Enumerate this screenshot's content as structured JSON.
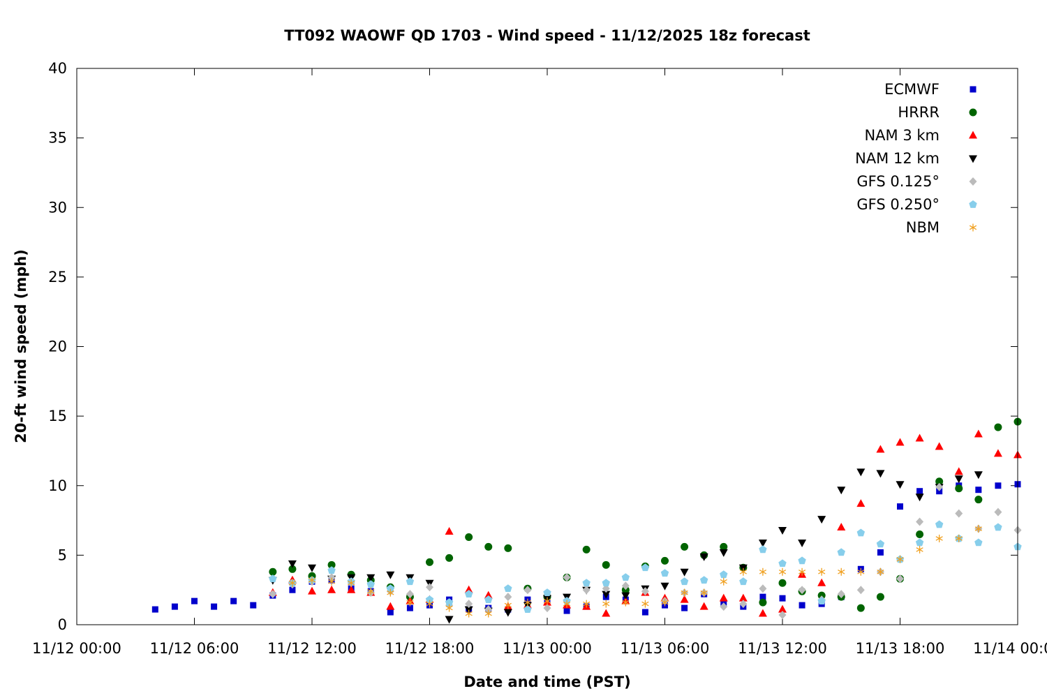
{
  "chart_data": {
    "type": "scatter",
    "title": "TT092 WAOWF QD 1703 - Wind speed - 11/12/2025 18z forecast",
    "xlabel": "Date and time (PST)",
    "ylabel": "20-ft wind speed (mph)",
    "xlim": [
      "11/12 00:00",
      "11/14 00:00"
    ],
    "ylim": [
      0,
      40
    ],
    "x_tick_labels": [
      "11/12 00:00",
      "11/12 06:00",
      "11/12 12:00",
      "11/12 18:00",
      "11/13 00:00",
      "11/13 06:00",
      "11/13 12:00",
      "11/13 18:00",
      "11/14 00:00"
    ],
    "y_tick_labels": [
      "0",
      "5",
      "10",
      "15",
      "20",
      "25",
      "30",
      "35",
      "40"
    ],
    "grid": false,
    "legend_position": "top-right",
    "series": [
      {
        "name": "ECMWF",
        "marker": "square",
        "color": "#0000cc",
        "x": [
          "11/12 04:00",
          "11/12 05:00",
          "11/12 06:00",
          "11/12 07:00",
          "11/12 08:00",
          "11/12 09:00",
          "11/12 10:00",
          "11/12 11:00",
          "11/12 12:00",
          "11/12 13:00",
          "11/12 14:00",
          "11/12 15:00",
          "11/12 16:00",
          "11/12 17:00",
          "11/12 18:00",
          "11/12 19:00",
          "11/12 20:00",
          "11/12 21:00",
          "11/12 22:00",
          "11/12 23:00",
          "11/13 00:00",
          "11/13 01:00",
          "11/13 02:00",
          "11/13 03:00",
          "11/13 04:00",
          "11/13 05:00",
          "11/13 06:00",
          "11/13 07:00",
          "11/13 08:00",
          "11/13 09:00",
          "11/13 10:00",
          "11/13 11:00",
          "11/13 12:00",
          "11/13 13:00",
          "11/13 14:00",
          "11/13 15:00",
          "11/13 16:00",
          "11/13 17:00",
          "11/13 18:00",
          "11/13 19:00",
          "11/13 20:00",
          "11/13 21:00",
          "11/13 22:00",
          "11/13 23:00",
          "11/14 00:00"
        ],
        "y": [
          1.1,
          1.3,
          1.7,
          1.3,
          1.7,
          1.4,
          2.1,
          2.5,
          3.1,
          3.2,
          2.6,
          2.4,
          0.9,
          1.2,
          1.4,
          1.8,
          1.1,
          1.2,
          1.1,
          1.8,
          1.7,
          1.0,
          1.3,
          2.0,
          1.8,
          0.9,
          1.4,
          1.2,
          2.2,
          1.6,
          1.3,
          2.0,
          1.9,
          1.4,
          1.5,
          2.0,
          4.0,
          5.2,
          8.5,
          9.6,
          9.6,
          10.0,
          9.7,
          10.0,
          10.1
        ]
      },
      {
        "name": "HRRR",
        "marker": "circle",
        "color": "#006400",
        "x": [
          "11/12 10:00",
          "11/12 11:00",
          "11/12 12:00",
          "11/12 13:00",
          "11/12 14:00",
          "11/12 15:00",
          "11/12 16:00",
          "11/12 17:00",
          "11/12 18:00",
          "11/12 19:00",
          "11/12 20:00",
          "11/12 21:00",
          "11/12 22:00",
          "11/12 23:00",
          "11/13 00:00",
          "11/13 01:00",
          "11/13 02:00",
          "11/13 03:00",
          "11/13 04:00",
          "11/13 05:00",
          "11/13 06:00",
          "11/13 07:00",
          "11/13 08:00",
          "11/13 09:00",
          "11/13 10:00",
          "11/13 11:00",
          "11/13 12:00",
          "11/13 13:00",
          "11/13 14:00",
          "11/13 15:00",
          "11/13 16:00",
          "11/13 17:00",
          "11/13 18:00",
          "11/13 19:00",
          "11/13 20:00",
          "11/13 21:00",
          "11/13 22:00",
          "11/13 23:00",
          "11/14 00:00"
        ],
        "y": [
          3.8,
          4.0,
          3.5,
          4.3,
          3.6,
          3.2,
          2.7,
          2.0,
          4.5,
          4.8,
          6.3,
          5.6,
          5.5,
          2.6,
          2.0,
          3.4,
          5.4,
          4.3,
          2.5,
          4.2,
          4.6,
          5.6,
          5.0,
          5.6,
          4.1,
          1.6,
          3.0,
          2.4,
          2.1,
          2.0,
          1.2,
          2.0,
          3.3,
          6.5,
          10.3,
          9.8,
          9.0,
          14.2,
          14.6
        ]
      },
      {
        "name": "NAM 3 km",
        "marker": "triangle-up",
        "color": "#ff0000",
        "x": [
          "11/12 10:00",
          "11/12 11:00",
          "11/12 12:00",
          "11/12 13:00",
          "11/12 14:00",
          "11/12 15:00",
          "11/12 16:00",
          "11/12 17:00",
          "11/12 18:00",
          "11/12 19:00",
          "11/12 20:00",
          "11/12 21:00",
          "11/12 22:00",
          "11/12 23:00",
          "11/13 00:00",
          "11/13 01:00",
          "11/13 02:00",
          "11/13 03:00",
          "11/13 04:00",
          "11/13 05:00",
          "11/13 06:00",
          "11/13 07:00",
          "11/13 08:00",
          "11/13 09:00",
          "11/13 10:00",
          "11/13 11:00",
          "11/13 12:00",
          "11/13 13:00",
          "11/13 14:00",
          "11/13 15:00",
          "11/13 16:00",
          "11/13 17:00",
          "11/13 18:00",
          "11/13 19:00",
          "11/13 20:00",
          "11/13 21:00",
          "11/13 22:00",
          "11/13 23:00",
          "11/14 00:00"
        ],
        "y": [
          2.3,
          3.2,
          2.4,
          2.5,
          2.5,
          2.3,
          1.3,
          1.7,
          1.8,
          6.7,
          2.5,
          2.1,
          1.3,
          1.4,
          1.6,
          1.4,
          1.3,
          0.8,
          1.7,
          2.3,
          1.9,
          1.8,
          1.3,
          1.9,
          1.9,
          0.8,
          1.1,
          3.6,
          3.0,
          7.0,
          8.7,
          12.6,
          13.1,
          13.4,
          12.8,
          11.0,
          13.7,
          12.3,
          12.2
        ]
      },
      {
        "name": "NAM 12 km",
        "marker": "triangle-down",
        "color": "#000000",
        "x": [
          "11/12 10:00",
          "11/12 11:00",
          "11/12 12:00",
          "11/12 13:00",
          "11/12 14:00",
          "11/12 15:00",
          "11/12 16:00",
          "11/12 17:00",
          "11/12 18:00",
          "11/12 19:00",
          "11/12 20:00",
          "11/12 21:00",
          "11/12 22:00",
          "11/12 23:00",
          "11/13 00:00",
          "11/13 01:00",
          "11/13 02:00",
          "11/13 03:00",
          "11/13 04:00",
          "11/13 05:00",
          "11/13 06:00",
          "11/13 07:00",
          "11/13 08:00",
          "11/13 09:00",
          "11/13 10:00",
          "11/13 11:00",
          "11/13 12:00",
          "11/13 13:00",
          "11/13 14:00",
          "11/13 15:00",
          "11/13 16:00",
          "11/13 17:00",
          "11/13 18:00",
          "11/13 19:00",
          "11/13 20:00",
          "11/13 21:00",
          "11/13 22:00",
          "11/13 23:00",
          "11/14 00:00"
        ],
        "y": [
          3.2,
          4.4,
          4.1,
          3.3,
          3.4,
          3.4,
          3.6,
          3.4,
          3.0,
          0.4,
          1.1,
          1.0,
          0.9,
          1.4,
          1.9,
          2.0,
          2.5,
          2.2,
          2.1,
          2.6,
          2.8,
          3.8,
          4.9,
          5.2,
          4.1,
          5.9,
          6.8,
          5.9,
          7.6,
          9.7,
          11.0,
          10.9,
          10.1,
          9.2,
          9.9,
          10.5,
          10.8,
          null,
          null
        ]
      },
      {
        "name": "GFS 0.125°",
        "marker": "diamond",
        "color": "#bbbbbb",
        "x": [
          "11/12 10:00",
          "11/12 11:00",
          "11/12 12:00",
          "11/12 13:00",
          "11/12 14:00",
          "11/12 15:00",
          "11/12 16:00",
          "11/12 17:00",
          "11/12 18:00",
          "11/12 19:00",
          "11/12 20:00",
          "11/12 21:00",
          "11/12 22:00",
          "11/12 23:00",
          "11/13 00:00",
          "11/13 01:00",
          "11/13 02:00",
          "11/13 03:00",
          "11/13 04:00",
          "11/13 05:00",
          "11/13 06:00",
          "11/13 07:00",
          "11/13 08:00",
          "11/13 09:00",
          "11/13 10:00",
          "11/13 11:00",
          "11/13 12:00",
          "11/13 13:00",
          "11/13 14:00",
          "11/13 15:00",
          "11/13 16:00",
          "11/13 17:00",
          "11/13 18:00",
          "11/13 19:00",
          "11/13 20:00",
          "11/13 21:00",
          "11/13 22:00",
          "11/13 23:00",
          "11/14 00:00"
        ],
        "y": [
          2.2,
          2.9,
          3.1,
          3.4,
          3.0,
          2.3,
          2.4,
          2.2,
          2.7,
          1.4,
          1.5,
          1.1,
          2.0,
          2.5,
          1.2,
          3.4,
          2.5,
          2.6,
          2.8,
          2.4,
          1.7,
          2.3,
          2.3,
          1.3,
          1.5,
          2.6,
          0.7,
          2.5,
          1.8,
          2.2,
          2.5,
          3.8,
          3.3,
          7.4,
          9.9,
          8.0,
          6.9,
          8.1,
          6.8
        ]
      },
      {
        "name": "GFS 0.250°",
        "marker": "pentagon",
        "color": "#87ceeb",
        "x": [
          "11/12 10:00",
          "11/12 11:00",
          "11/12 12:00",
          "11/12 13:00",
          "11/12 14:00",
          "11/12 15:00",
          "11/12 16:00",
          "11/12 17:00",
          "11/12 18:00",
          "11/12 19:00",
          "11/12 20:00",
          "11/12 21:00",
          "11/12 22:00",
          "11/12 23:00",
          "11/13 00:00",
          "11/13 01:00",
          "11/13 02:00",
          "11/13 03:00",
          "11/13 04:00",
          "11/13 05:00",
          "11/13 06:00",
          "11/13 07:00",
          "11/13 08:00",
          "11/13 09:00",
          "11/13 10:00",
          "11/13 11:00",
          "11/13 12:00",
          "11/13 13:00",
          "11/13 14:00",
          "11/13 15:00",
          "11/13 16:00",
          "11/13 17:00",
          "11/13 18:00",
          "11/13 19:00",
          "11/13 20:00",
          "11/13 21:00",
          "11/13 22:00",
          "11/13 23:00",
          "11/14 00:00"
        ],
        "y": [
          3.3,
          3.0,
          3.2,
          3.9,
          3.1,
          2.9,
          2.6,
          3.1,
          1.8,
          1.6,
          2.2,
          1.8,
          2.6,
          1.1,
          2.3,
          1.7,
          3.0,
          3.0,
          3.4,
          4.1,
          3.7,
          3.1,
          3.2,
          3.6,
          3.1,
          5.4,
          4.4,
          4.6,
          1.7,
          5.2,
          6.6,
          5.8,
          4.7,
          5.9,
          7.2,
          6.2,
          5.9,
          7.0,
          5.6
        ]
      },
      {
        "name": "NBM",
        "marker": "asterisk",
        "color": "#f0a020",
        "x": [
          "11/12 10:00",
          "11/12 11:00",
          "11/12 12:00",
          "11/12 13:00",
          "11/12 14:00",
          "11/12 15:00",
          "11/12 16:00",
          "11/12 17:00",
          "11/12 18:00",
          "11/12 19:00",
          "11/12 20:00",
          "11/12 21:00",
          "11/12 22:00",
          "11/12 23:00",
          "11/13 00:00",
          "11/13 01:00",
          "11/13 02:00",
          "11/13 03:00",
          "11/13 04:00",
          "11/13 05:00",
          "11/13 06:00",
          "11/13 07:00",
          "11/13 08:00",
          "11/13 09:00",
          "11/13 10:00",
          "11/13 11:00",
          "11/13 12:00",
          "11/13 13:00",
          "11/13 14:00",
          "11/13 15:00",
          "11/13 16:00",
          "11/13 17:00",
          "11/13 18:00",
          "11/13 19:00",
          "11/13 20:00",
          "11/13 21:00",
          "11/13 22:00",
          "11/13 23:00",
          "11/14 00:00"
        ],
        "y": [
          null,
          3.0,
          3.2,
          3.1,
          3.0,
          2.4,
          2.3,
          1.6,
          1.5,
          1.2,
          0.8,
          0.8,
          1.4,
          1.6,
          1.7,
          1.5,
          1.5,
          1.5,
          1.6,
          1.5,
          1.6,
          2.3,
          2.3,
          3.1,
          3.8,
          3.8,
          3.8,
          3.8,
          3.8,
          3.8,
          3.8,
          3.8,
          4.7,
          5.4,
          6.2,
          6.2,
          6.9,
          null,
          null
        ]
      }
    ]
  }
}
